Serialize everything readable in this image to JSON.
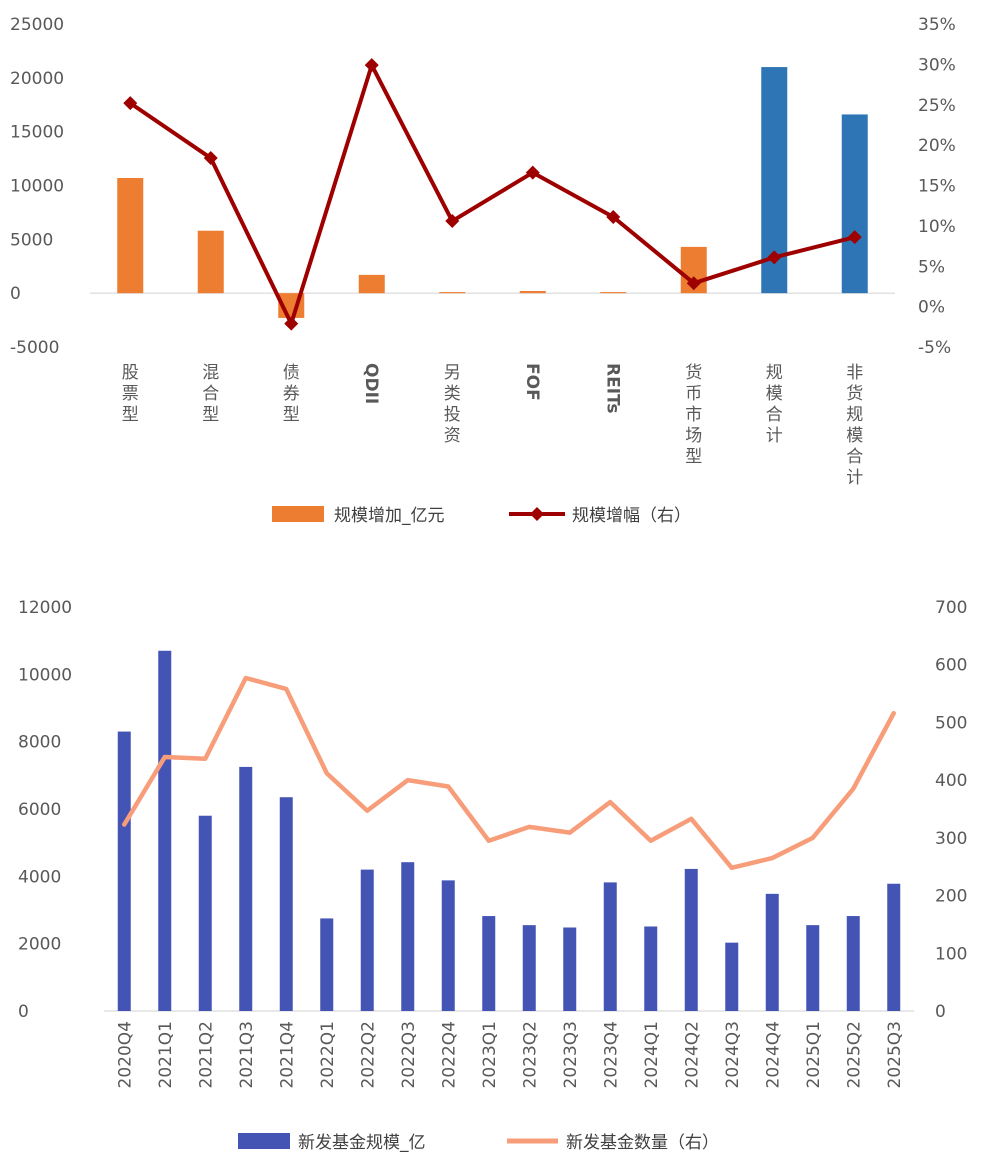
{
  "chart_data": [
    {
      "type": "bar+line",
      "title": "",
      "categories": [
        "股票型",
        "混合型",
        "债券型",
        "QDII",
        "另类投资",
        "FOF",
        "REITs",
        "货币市场型",
        "规模合计",
        "非货规模合计"
      ],
      "y_left": {
        "min": -5000,
        "max": 25000,
        "step": 5000,
        "ticks": [
          "25000",
          "20000",
          "15000",
          "10000",
          "5000",
          "0",
          "-5000"
        ]
      },
      "y_right": {
        "min": -5,
        "max": 35,
        "step": 5,
        "ticks": [
          "35%",
          "30%",
          "25%",
          "20%",
          "15%",
          "10%",
          "5%",
          "0%",
          "-5%"
        ]
      },
      "series": [
        {
          "name": "规模增加_亿元",
          "type": "bar",
          "axis": "left",
          "values": [
            10700,
            5800,
            -2300,
            1700,
            100,
            200,
            100,
            4300,
            21000,
            16600
          ],
          "colors": [
            "#ED7D31",
            "#ED7D31",
            "#ED7D31",
            "#ED7D31",
            "#ED7D31",
            "#ED7D31",
            "#ED7D31",
            "#ED7D31",
            "#2E75B6",
            "#2E75B6"
          ]
        },
        {
          "name": "规模增幅（右）",
          "type": "line",
          "axis": "right",
          "color": "#9E0000",
          "values": [
            25.2,
            18.4,
            -2.1,
            29.9,
            10.6,
            16.6,
            11.1,
            2.9,
            6.1,
            8.6
          ]
        }
      ],
      "legend": [
        "规模增加_亿元",
        "规模增幅（右）"
      ]
    },
    {
      "type": "bar+line",
      "title": "",
      "categories": [
        "2020Q4",
        "2021Q1",
        "2021Q2",
        "2021Q3",
        "2021Q4",
        "2022Q1",
        "2022Q2",
        "2022Q3",
        "2022Q4",
        "2023Q1",
        "2023Q2",
        "2023Q3",
        "2023Q4",
        "2024Q1",
        "2024Q2",
        "2024Q3",
        "2024Q4",
        "2025Q1",
        "2025Q2",
        "2025Q3"
      ],
      "y_left": {
        "min": 0,
        "max": 12000,
        "step": 2000,
        "ticks": [
          "12000",
          "10000",
          "8000",
          "6000",
          "4000",
          "2000",
          "0"
        ]
      },
      "y_right": {
        "min": 0,
        "max": 700,
        "step": 100,
        "ticks": [
          "700",
          "600",
          "500",
          "400",
          "300",
          "200",
          "100",
          "0"
        ]
      },
      "series": [
        {
          "name": "新发基金规模_亿",
          "type": "bar",
          "axis": "left",
          "color": "#4454B4",
          "values": [
            8300,
            10700,
            5800,
            7250,
            6350,
            2750,
            4200,
            4420,
            3880,
            2820,
            2550,
            2480,
            3820,
            2510,
            4220,
            2030,
            3480,
            2550,
            2820,
            3780
          ]
        },
        {
          "name": "新发基金数量（右）",
          "type": "line",
          "axis": "right",
          "color": "#F79D7A",
          "values": [
            323,
            440,
            437,
            577,
            558,
            412,
            347,
            400,
            389,
            295,
            319,
            309,
            362,
            295,
            333,
            248,
            265,
            300,
            385,
            516
          ]
        }
      ],
      "legend": [
        "新发基金规模_亿",
        "新发基金数量（右）"
      ]
    }
  ]
}
